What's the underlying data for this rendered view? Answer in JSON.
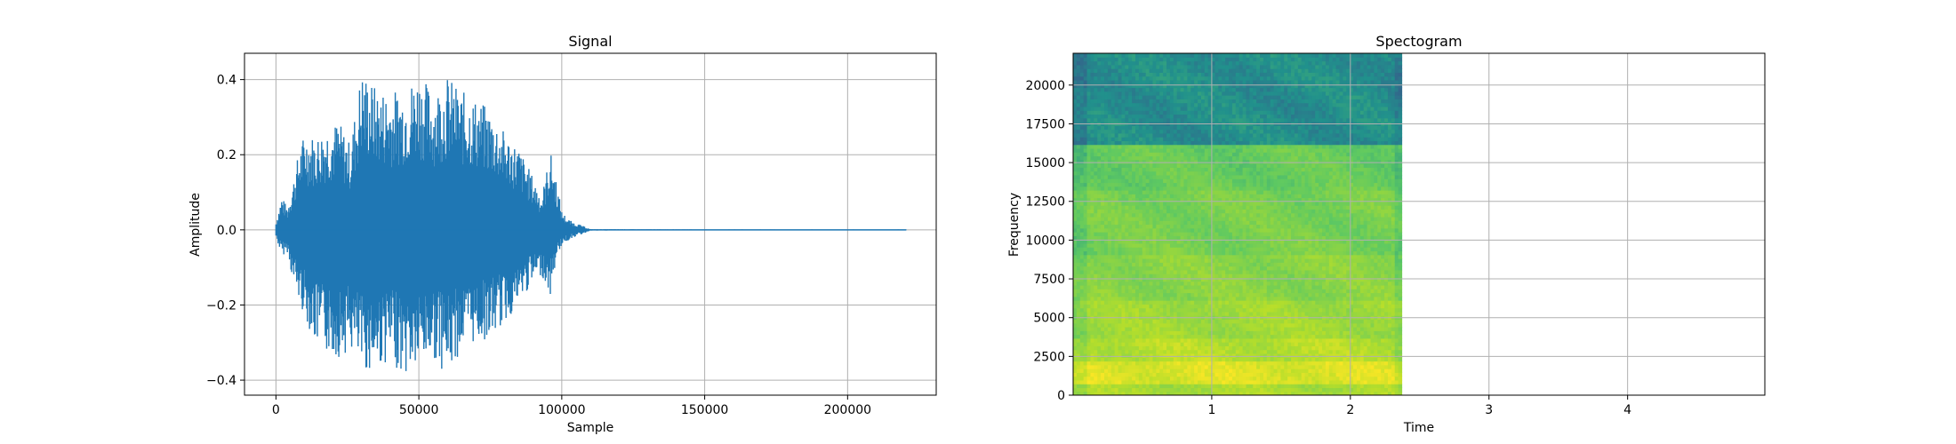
{
  "chart_data": [
    {
      "type": "line",
      "title": "Signal",
      "xlabel": "Sample",
      "ylabel": "Amplitude",
      "xlim": [
        -11000,
        231000
      ],
      "ylim": [
        -0.44,
        0.47
      ],
      "xticks": [
        0,
        50000,
        100000,
        150000,
        200000
      ],
      "xtick_labels": [
        "0",
        "50000",
        "100000",
        "150000",
        "200000"
      ],
      "yticks": [
        -0.4,
        -0.2,
        0.0,
        0.2,
        0.4
      ],
      "ytick_labels": [
        "−0.4",
        "−0.2",
        "0.0",
        "0.2",
        "0.4"
      ],
      "grid": true,
      "color": "#1f77b4",
      "series": [
        {
          "x": [
            0,
            2000,
            4000,
            6000,
            8000,
            10000,
            14000,
            18000,
            22000,
            26000,
            30000,
            35000,
            40000,
            45000,
            50000,
            55000,
            60000,
            65000,
            70000,
            75000,
            80000,
            85000,
            90000,
            93000,
            96000,
            98000,
            100000,
            102000,
            104000,
            106000,
            110000,
            150000,
            200000,
            220500
          ],
          "upper": [
            0.02,
            0.09,
            0.06,
            0.13,
            0.21,
            0.26,
            0.25,
            0.28,
            0.29,
            0.23,
            0.43,
            0.38,
            0.37,
            0.38,
            0.42,
            0.37,
            0.41,
            0.37,
            0.35,
            0.32,
            0.26,
            0.22,
            0.14,
            0.09,
            0.21,
            0.14,
            0.05,
            0.03,
            0.02,
            0.015,
            0.002,
            0.001,
            0.001,
            0.001
          ],
          "lower": [
            -0.02,
            -0.07,
            -0.06,
            -0.14,
            -0.19,
            -0.23,
            -0.31,
            -0.33,
            -0.34,
            -0.32,
            -0.38,
            -0.37,
            -0.35,
            -0.39,
            -0.37,
            -0.34,
            -0.39,
            -0.32,
            -0.3,
            -0.29,
            -0.25,
            -0.2,
            -0.14,
            -0.12,
            -0.18,
            -0.08,
            -0.04,
            -0.03,
            -0.02,
            -0.015,
            -0.002,
            -0.001,
            -0.001,
            -0.001
          ]
        }
      ]
    },
    {
      "type": "heatmap",
      "title": "Spectogram",
      "xlabel": "Time",
      "ylabel": "Frequency",
      "xlim": [
        0,
        4.99
      ],
      "ylim": [
        0,
        22050
      ],
      "xticks": [
        1,
        2,
        3,
        4
      ],
      "xtick_labels": [
        "1",
        "2",
        "3",
        "4"
      ],
      "yticks": [
        0,
        2500,
        5000,
        7500,
        10000,
        12500,
        15000,
        17500,
        20000
      ],
      "ytick_labels": [
        "0",
        "2500",
        "5000",
        "7500",
        "10000",
        "12500",
        "15000",
        "17500",
        "20000"
      ],
      "grid": true,
      "colormap": "viridis",
      "data_time_range": [
        0,
        2.37
      ],
      "bands": [
        {
          "f0": 0,
          "f1": 500,
          "level": 0.82
        },
        {
          "f0": 500,
          "f1": 2200,
          "level": 0.93
        },
        {
          "f0": 2200,
          "f1": 3500,
          "level": 0.85
        },
        {
          "f0": 3500,
          "f1": 6000,
          "level": 0.8
        },
        {
          "f0": 6000,
          "f1": 9000,
          "level": 0.75
        },
        {
          "f0": 9000,
          "f1": 13000,
          "level": 0.71
        },
        {
          "f0": 13000,
          "f1": 16000,
          "level": 0.67
        },
        {
          "f0": 16000,
          "f1": 22050,
          "level": 0.44
        }
      ]
    }
  ]
}
